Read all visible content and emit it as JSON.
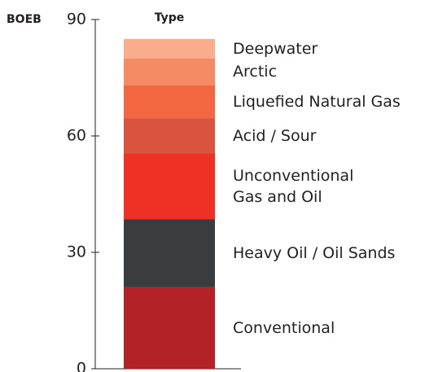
{
  "chart_data": {
    "type": "stacked_bar",
    "title": "Type",
    "y_label": "BOEB",
    "categories": [
      null
    ],
    "series": [
      {
        "name": "Conventional",
        "color": "#b22226",
        "values": [
          21
        ]
      },
      {
        "name": "Heavy Oil / Oil Sands",
        "color": "#3a3d40",
        "values": [
          17.5
        ]
      },
      {
        "name": "Unconventional\nGas and Oil",
        "color": "#ee3124",
        "values": [
          17
        ]
      },
      {
        "name": "Acid / Sour",
        "color": "#d9533f",
        "values": [
          9
        ]
      },
      {
        "name": "Liquefied Natural Gas",
        "color": "#f26641",
        "values": [
          8.5
        ]
      },
      {
        "name": "Arctic",
        "color": "#f58a64",
        "values": [
          7
        ]
      },
      {
        "name": "Deepwater",
        "color": "#f9ad8c",
        "values": [
          5
        ]
      }
    ],
    "ylim": [
      0,
      90
    ],
    "yticks": [
      0,
      30,
      60,
      90
    ]
  }
}
